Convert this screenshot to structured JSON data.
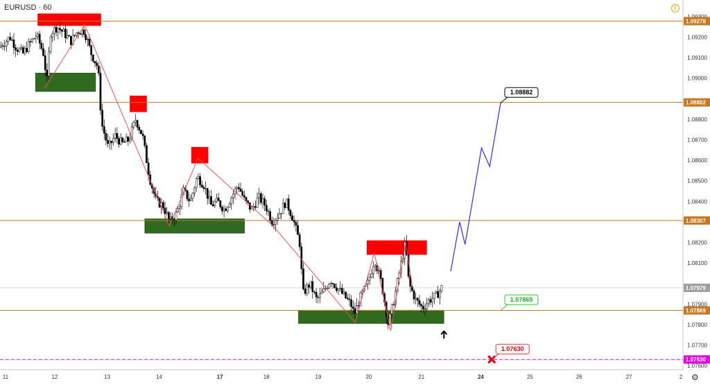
{
  "header": {
    "symbol": "EURUSD",
    "interval": "60"
  },
  "icons": {
    "alert": "warning-circle-icon",
    "settings": "gear-icon"
  },
  "colors": {
    "level": "#c8781e",
    "bull": "#ffffff",
    "bear": "#000000",
    "resistance": "#ff0000",
    "support": "#2e6b1f",
    "projection": "#2b2bff",
    "target_line": "#e600e6",
    "zigzag": "#f05050"
  },
  "chart_data": {
    "type": "candlestick",
    "symbol": "EURUSD",
    "ylim": [
      1.0758,
      1.0932
    ],
    "x_ticks": [
      "11",
      "12",
      "13",
      "14",
      "17",
      "18",
      "19",
      "20",
      "21",
      "24",
      "25",
      "26",
      "27",
      "2"
    ],
    "y_ticks": [
      "1.09300",
      "1.09200",
      "1.09100",
      "1.09000",
      "1.08800",
      "1.08700",
      "1.08600",
      "1.08500",
      "1.08400",
      "1.08200",
      "1.08100",
      "1.07900",
      "1.07800",
      "1.07700",
      "1.07600"
    ],
    "levels": [
      {
        "label": "1.09278",
        "value": 1.09278
      },
      {
        "label": "1.08882",
        "value": 1.08882
      },
      {
        "label": "1.08307",
        "value": 1.08307
      },
      {
        "label": "1.07869",
        "value": 1.07869
      }
    ],
    "last_price": {
      "label": "1.07979",
      "value": 1.07979
    },
    "target_line": {
      "label": "1.07630",
      "value": 1.0763
    },
    "price_path": [
      [
        0.0,
        1.0915
      ],
      [
        0.016,
        1.092
      ],
      [
        0.025,
        1.0915
      ],
      [
        0.035,
        1.0912
      ],
      [
        0.045,
        1.0917
      ],
      [
        0.055,
        1.0921
      ],
      [
        0.065,
        1.0912
      ],
      [
        0.07,
        1.0898
      ],
      [
        0.075,
        1.0922
      ],
      [
        0.085,
        1.0925
      ],
      [
        0.095,
        1.0922
      ],
      [
        0.105,
        1.0918
      ],
      [
        0.115,
        1.0923
      ],
      [
        0.125,
        1.0923
      ],
      [
        0.135,
        1.0912
      ],
      [
        0.145,
        1.0905
      ],
      [
        0.15,
        1.0878
      ],
      [
        0.16,
        1.0866
      ],
      [
        0.17,
        1.0872
      ],
      [
        0.18,
        1.0868
      ],
      [
        0.19,
        1.087
      ],
      [
        0.2,
        1.088
      ],
      [
        0.21,
        1.0872
      ],
      [
        0.22,
        1.0852
      ],
      [
        0.23,
        1.084
      ],
      [
        0.24,
        1.0838
      ],
      [
        0.25,
        1.083
      ],
      [
        0.26,
        1.0834
      ],
      [
        0.27,
        1.0845
      ],
      [
        0.28,
        1.084
      ],
      [
        0.29,
        1.0852
      ],
      [
        0.3,
        1.0848
      ],
      [
        0.31,
        1.0838
      ],
      [
        0.32,
        1.084
      ],
      [
        0.33,
        1.0836
      ],
      [
        0.34,
        1.0842
      ],
      [
        0.35,
        1.0848
      ],
      [
        0.36,
        1.084
      ],
      [
        0.37,
        1.0836
      ],
      [
        0.38,
        1.0842
      ],
      [
        0.39,
        1.0838
      ],
      [
        0.4,
        1.083
      ],
      [
        0.41,
        1.0834
      ],
      [
        0.42,
        1.084
      ],
      [
        0.43,
        1.0832
      ],
      [
        0.44,
        1.082
      ],
      [
        0.445,
        1.0795
      ],
      [
        0.455,
        1.08
      ],
      [
        0.465,
        1.0792
      ],
      [
        0.475,
        1.0796
      ],
      [
        0.485,
        1.0802
      ],
      [
        0.495,
        1.0798
      ],
      [
        0.505,
        1.0794
      ],
      [
        0.515,
        1.079
      ],
      [
        0.52,
        1.0785
      ],
      [
        0.53,
        1.0794
      ],
      [
        0.54,
        1.08
      ],
      [
        0.55,
        1.0812
      ],
      [
        0.56,
        1.08
      ],
      [
        0.57,
        1.078
      ],
      [
        0.58,
        1.0795
      ],
      [
        0.59,
        1.0812
      ],
      [
        0.595,
        1.082
      ],
      [
        0.6,
        1.08
      ],
      [
        0.61,
        1.0792
      ],
      [
        0.62,
        1.0788
      ],
      [
        0.63,
        1.0792
      ],
      [
        0.64,
        1.0794
      ],
      [
        0.648,
        1.07979
      ]
    ],
    "zones": {
      "resistance": [
        {
          "x": [
            0.055,
            0.148
          ],
          "y": [
            1.09255,
            1.09315
          ]
        },
        {
          "x": [
            0.19,
            0.215
          ],
          "y": [
            1.08835,
            1.08915
          ]
        },
        {
          "x": [
            0.28,
            0.305
          ],
          "y": [
            1.08585,
            1.08665
          ]
        },
        {
          "x": [
            0.537,
            0.625
          ],
          "y": [
            1.0814,
            1.0821
          ]
        }
      ],
      "support": [
        {
          "x": [
            0.052,
            0.14
          ],
          "y": [
            1.08935,
            1.09025
          ]
        },
        {
          "x": [
            0.212,
            0.358
          ],
          "y": [
            1.08245,
            1.08315
          ]
        },
        {
          "x": [
            0.437,
            0.65
          ],
          "y": [
            1.07805,
            1.0787
          ]
        }
      ]
    },
    "zigzag": [
      [
        0.065,
        1.0895
      ],
      [
        0.124,
        1.0926
      ],
      [
        0.21,
        1.0858
      ],
      [
        0.248,
        1.0828
      ],
      [
        0.29,
        1.0861
      ],
      [
        0.4,
        1.0828
      ],
      [
        0.52,
        1.0781
      ],
      [
        0.548,
        1.0815
      ],
      [
        0.572,
        1.0777
      ],
      [
        0.594,
        1.082
      ],
      [
        0.604,
        1.0798
      ]
    ],
    "projection": [
      [
        0.66,
        1.0806
      ],
      [
        0.673,
        1.083
      ],
      [
        0.681,
        1.0819
      ],
      [
        0.705,
        1.0866
      ],
      [
        0.717,
        1.0857
      ],
      [
        0.733,
        1.0888
      ]
    ],
    "markers": {
      "up_arrow": {
        "x": 0.65,
        "y": 1.07745
      },
      "target_x": {
        "x": 0.72,
        "y": 1.0763
      }
    },
    "callouts": [
      {
        "label": "1.08882",
        "style": "dark",
        "anchor": [
          0.733,
          1.0888
        ]
      },
      {
        "label": "1.07869",
        "style": "green",
        "anchor": [
          0.733,
          1.0787
        ]
      },
      {
        "label": "1.07630",
        "style": "red",
        "anchor": [
          0.72,
          1.0763
        ]
      }
    ]
  }
}
